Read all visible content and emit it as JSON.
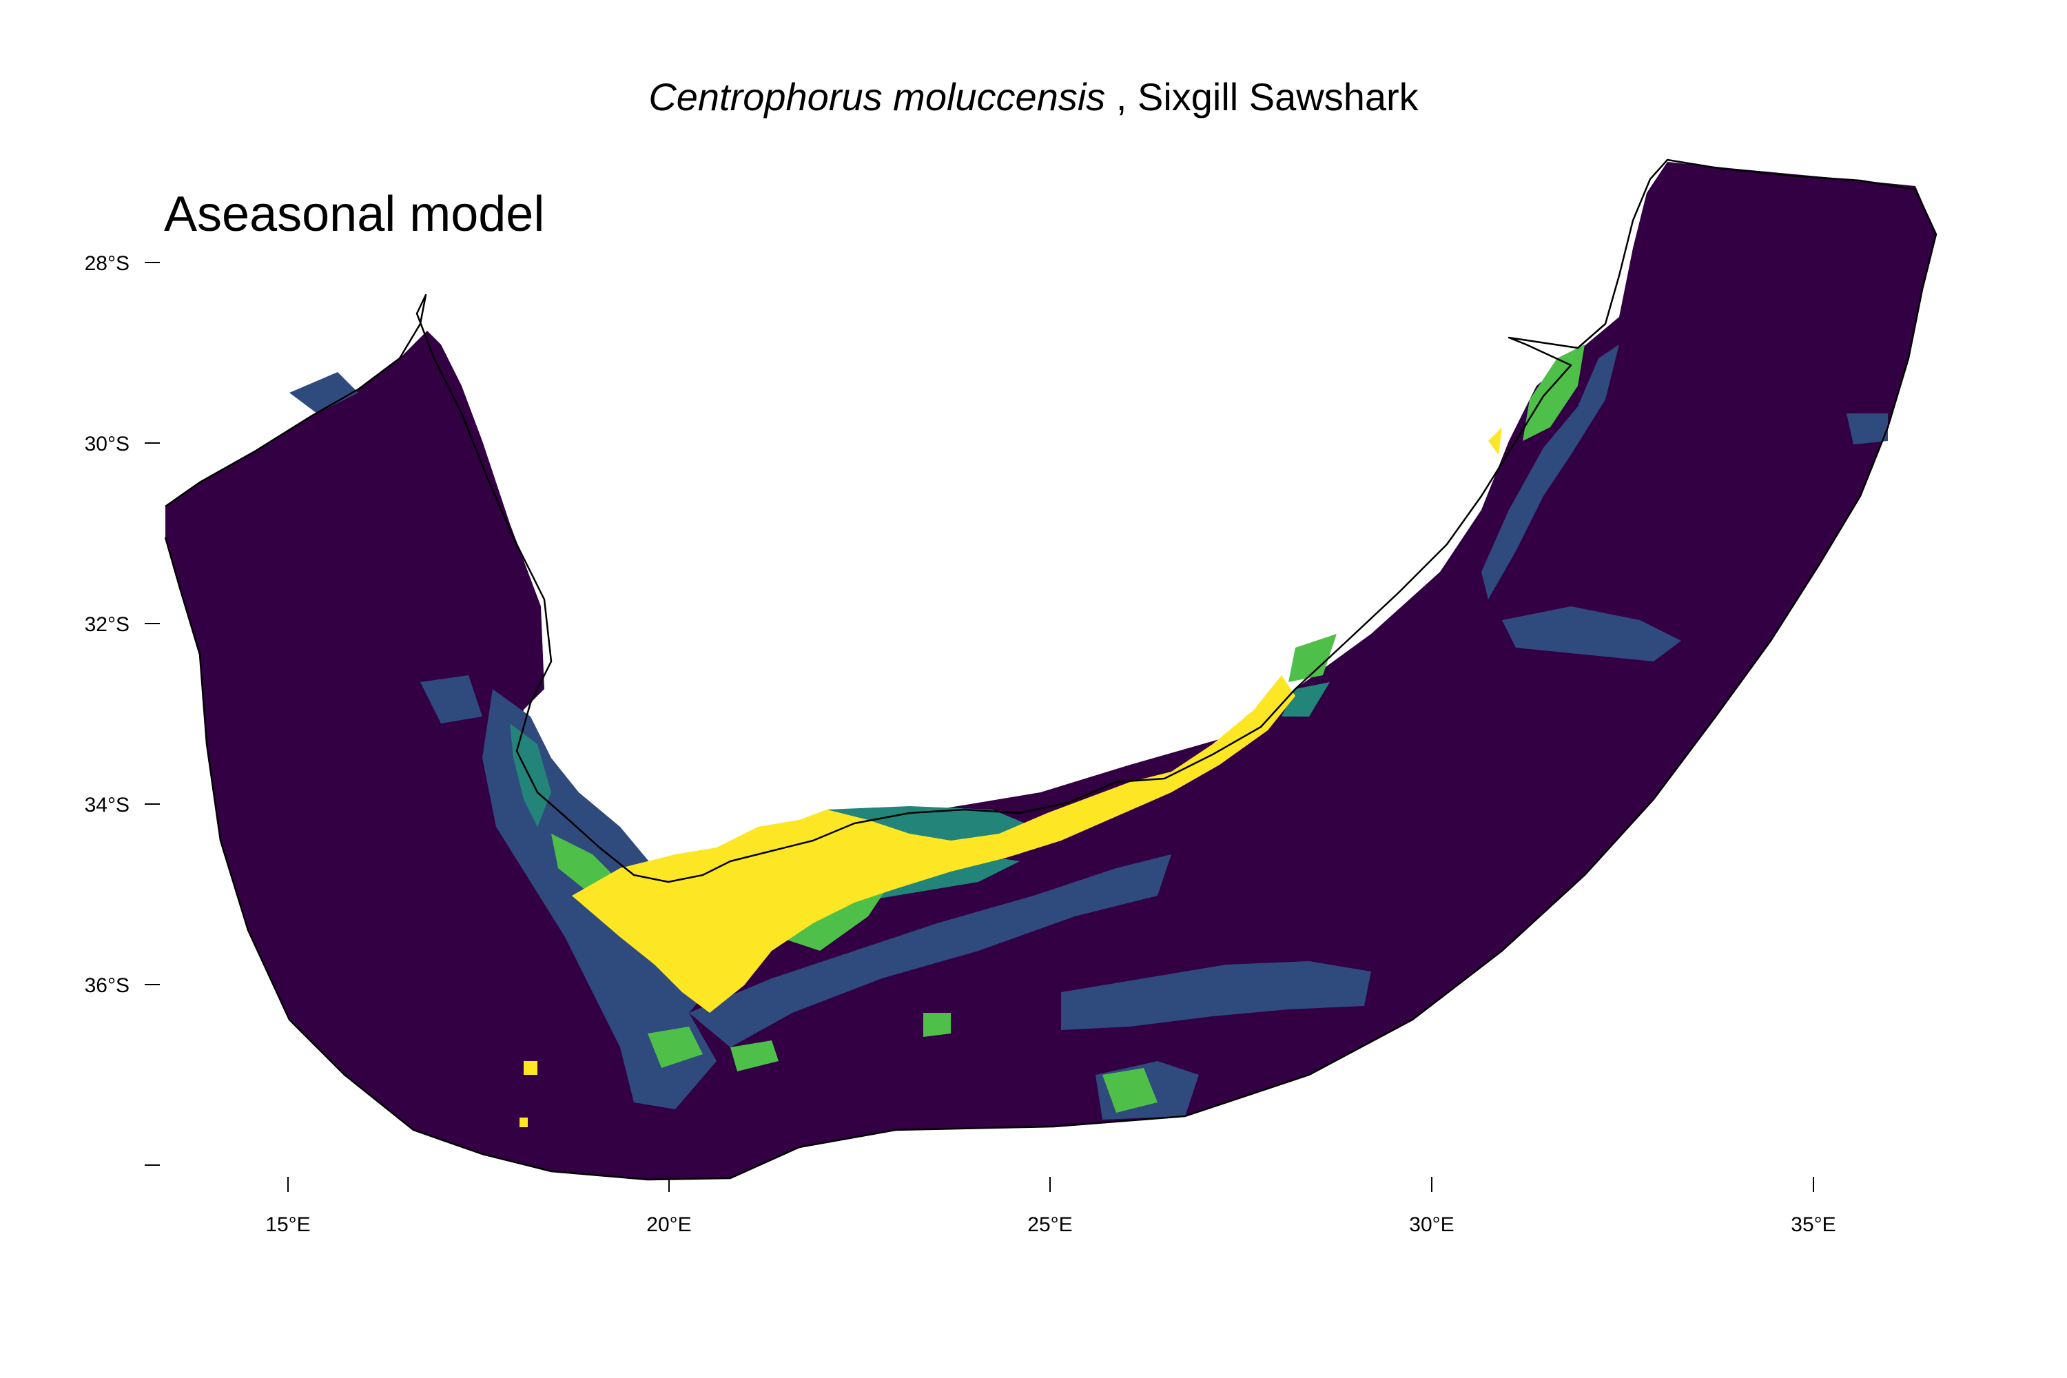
{
  "title": {
    "scientific_name": "Centrophorus moluccensis",
    "separator": " , ",
    "common_name": "Sixgill Sawshark"
  },
  "subtitle": "Aseasonal model",
  "axes": {
    "lon_ticks": [
      "15°E",
      "20°E",
      "25°E",
      "30°E",
      "35°E"
    ],
    "lat_ticks": [
      "28°S",
      "30°S",
      "32°S",
      "34°S",
      "36°S",
      ""
    ]
  },
  "colors": {
    "level_0": "#330044",
    "level_1": "#2f4a7d",
    "level_2": "#23857a",
    "level_3": "#4ec04a",
    "level_4": "#fde725",
    "coastline": "#000000",
    "axis": "#000000"
  },
  "icons": {
    "map": "map-icon"
  }
}
